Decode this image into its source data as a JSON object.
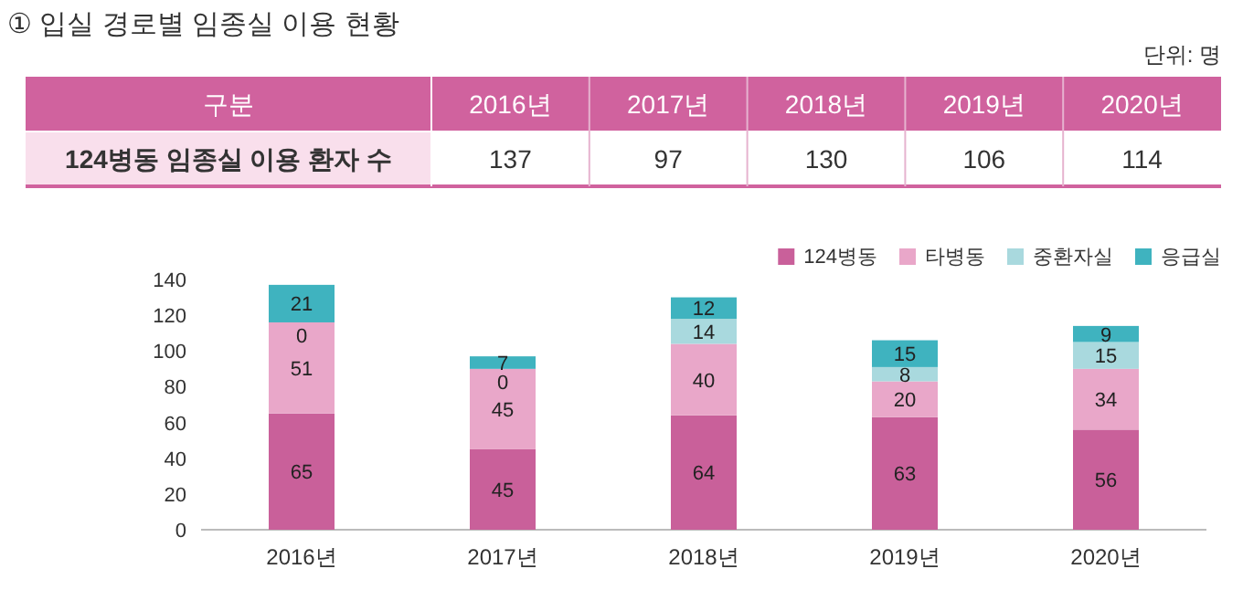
{
  "chart_data": {
    "type": "bar",
    "stacked": true,
    "title": "① 입실 경로별 임종실 이용 현황",
    "annotations": [
      "단위: 명",
      "구분",
      "124병동 임종실 이용 환자 수",
      "137",
      "97",
      "130",
      "106",
      "114"
    ],
    "categories": [
      "2016년",
      "2017년",
      "2018년",
      "2019년",
      "2020년"
    ],
    "series": [
      {
        "name": "124병동",
        "color": "#c9609a",
        "values": [
          65,
          45,
          64,
          63,
          56
        ]
      },
      {
        "name": "타병동",
        "color": "#e9a7c9",
        "values": [
          51,
          45,
          40,
          20,
          34
        ]
      },
      {
        "name": "중환자실",
        "color": "#a9d9de",
        "values": [
          0,
          0,
          14,
          8,
          15
        ]
      },
      {
        "name": "응급실",
        "color": "#3fb3bf",
        "values": [
          21,
          7,
          12,
          15,
          9
        ]
      }
    ],
    "ylim": [
      0,
      140
    ],
    "yticks": [
      0,
      20,
      40,
      60,
      80,
      100,
      120,
      140
    ],
    "data_labels": true,
    "grid": false,
    "legend": "top right"
  }
}
